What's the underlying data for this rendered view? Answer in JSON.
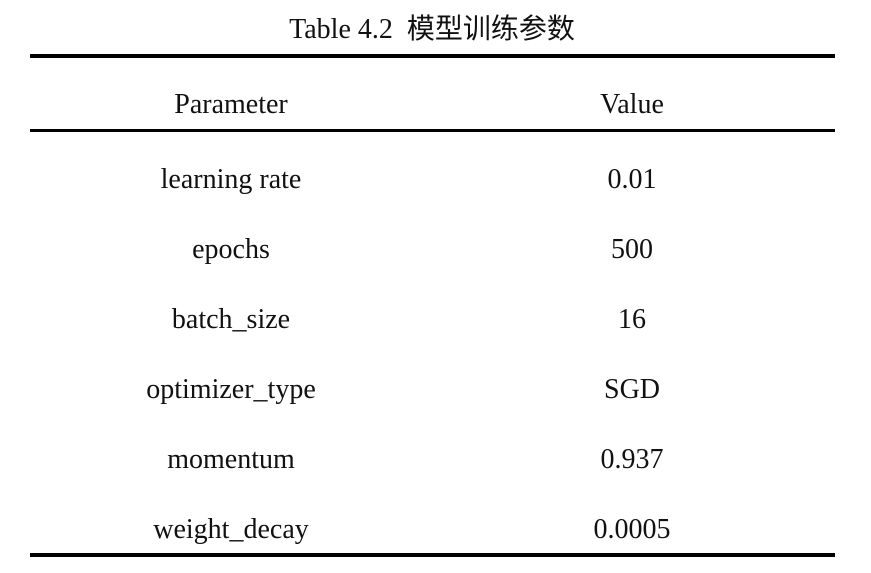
{
  "table": {
    "caption": "Table 4.2  模型训练参数",
    "header": [
      "Parameter",
      "Value"
    ],
    "rows": [
      [
        "learning rate",
        "0.01"
      ],
      [
        "epochs",
        "500"
      ],
      [
        "batch_size",
        "16"
      ],
      [
        "optimizer_type",
        "SGD"
      ],
      [
        "momentum",
        "0.937"
      ],
      [
        "weight_decay",
        "0.0005"
      ]
    ]
  }
}
